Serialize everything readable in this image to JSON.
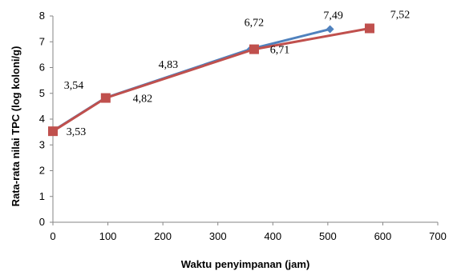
{
  "chart_data": {
    "type": "line",
    "title": "",
    "xlabel": "Waktu penyimpanan (jam)",
    "ylabel": "Rata-rata nilai  TPC (log koloni/g)",
    "xlim": [
      0,
      700
    ],
    "ylim": [
      0,
      8
    ],
    "x_ticks": [
      0,
      100,
      200,
      300,
      400,
      500,
      600,
      700
    ],
    "y_ticks": [
      0,
      1,
      2,
      3,
      4,
      5,
      6,
      7,
      8
    ],
    "grid": false,
    "legend": "none",
    "series": [
      {
        "marker": "diamond",
        "color": "#4F81BD",
        "x": [
          0,
          96,
          360,
          504
        ],
        "y": [
          3.54,
          4.83,
          6.72,
          7.49
        ],
        "labels": [
          "3,54",
          "4,83",
          "6,72",
          "7,49"
        ]
      },
      {
        "marker": "square",
        "color": "#C0504D",
        "x": [
          0,
          96,
          366,
          576
        ],
        "y": [
          3.53,
          4.82,
          6.71,
          7.52
        ],
        "labels": [
          "3,53",
          "4,82",
          "6,71",
          "7,52"
        ]
      }
    ]
  }
}
